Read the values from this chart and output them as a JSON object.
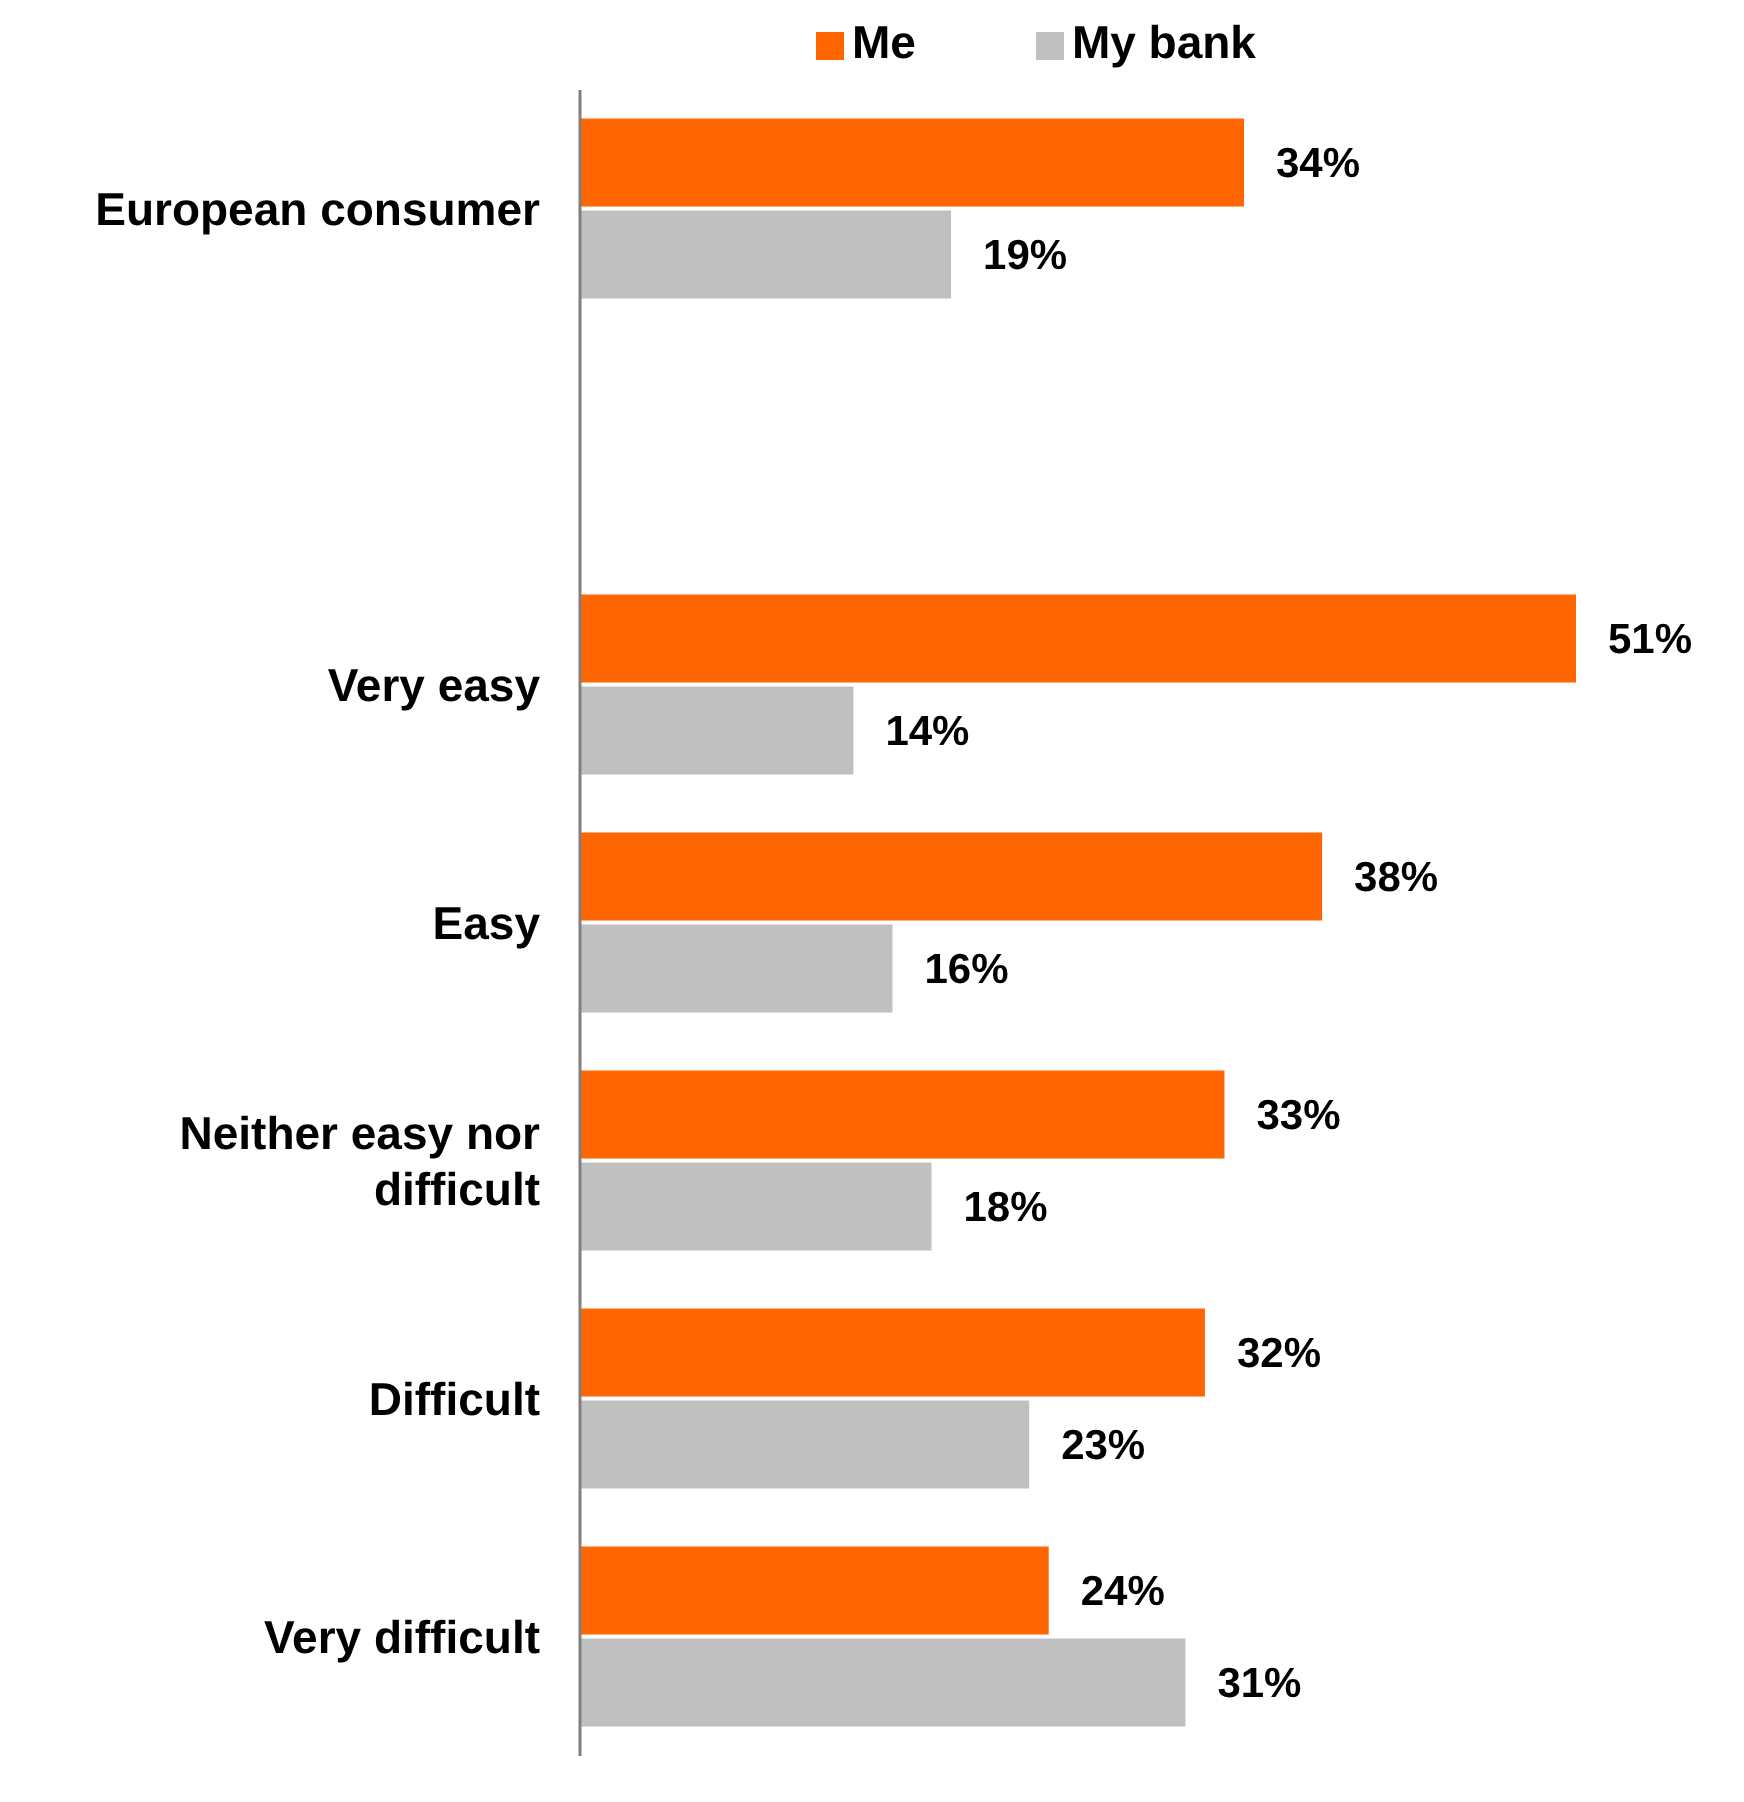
{
  "chart_data": {
    "type": "bar",
    "orientation": "horizontal",
    "categories": [
      "European consumer",
      null,
      "Very easy",
      "Easy",
      "Neither easy nor difficult",
      "Difficult",
      "Very difficult"
    ],
    "series": [
      {
        "name": "Me",
        "color": "#ff6600",
        "values": [
          34,
          null,
          51,
          38,
          33,
          32,
          24
        ],
        "value_labels": [
          "34%",
          null,
          "51%",
          "38%",
          "33%",
          "32%",
          "24%"
        ]
      },
      {
        "name": "My bank",
        "color": "#c0c0c0",
        "values": [
          19,
          null,
          14,
          16,
          18,
          23,
          31
        ],
        "value_labels": [
          "19%",
          null,
          "14%",
          "16%",
          "18%",
          "23%",
          "31%"
        ]
      }
    ],
    "legend": "top",
    "tick_labels": "y"
  }
}
